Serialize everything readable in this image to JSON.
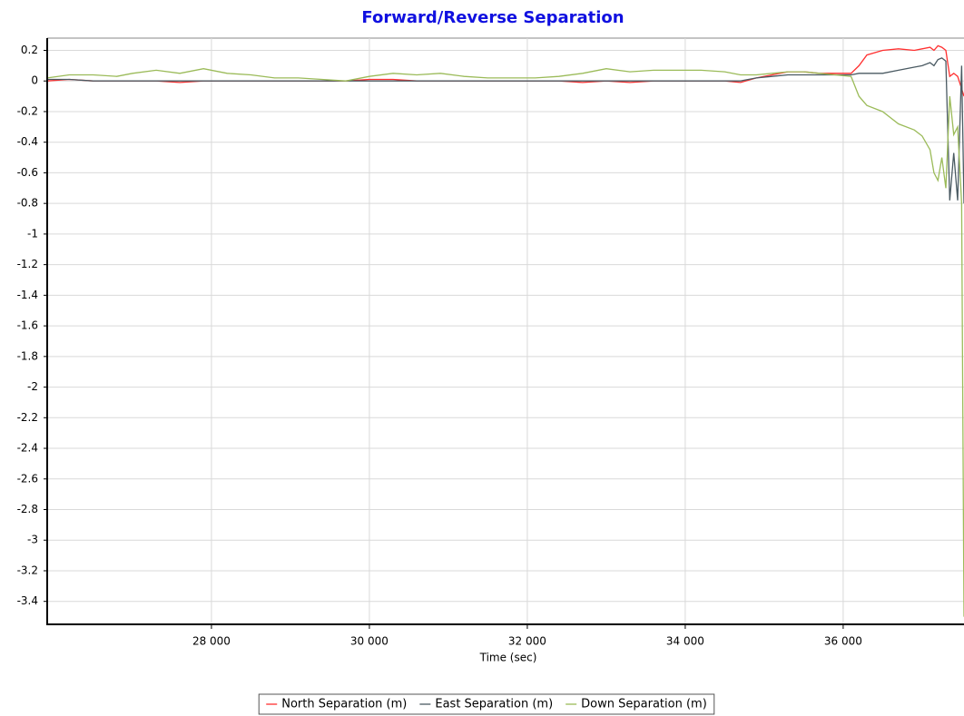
{
  "chart_data": {
    "type": "line",
    "title": "Forward/Reverse Separation",
    "x_label": "Time (sec)",
    "x": [
      25920,
      26200,
      26500,
      26800,
      27000,
      27300,
      27600,
      27900,
      28200,
      28500,
      28800,
      29100,
      29400,
      29700,
      30000,
      30300,
      30600,
      30900,
      31200,
      31500,
      31800,
      32100,
      32400,
      32700,
      33000,
      33300,
      33600,
      33900,
      34200,
      34500,
      34700,
      34900,
      35100,
      35300,
      35500,
      35700,
      35900,
      36100,
      36200,
      36300,
      36500,
      36700,
      36900,
      37000,
      37100,
      37150,
      37200,
      37250,
      37300,
      37350,
      37400,
      37450,
      37500,
      37530
    ],
    "series": [
      {
        "name": "North Separation (m)",
        "color": "#ff3030",
        "values": [
          0,
          0.01,
          0,
          0,
          0,
          0,
          -0.01,
          0,
          0,
          0,
          0,
          0,
          0,
          0,
          0.01,
          0.01,
          0,
          0,
          0,
          0,
          0,
          0,
          0,
          -0.01,
          0,
          -0.01,
          0,
          0,
          0,
          0,
          -0.01,
          0.02,
          0.04,
          0.06,
          0.06,
          0.05,
          0.05,
          0.05,
          0.1,
          0.17,
          0.2,
          0.21,
          0.2,
          0.21,
          0.22,
          0.2,
          0.23,
          0.22,
          0.2,
          0.03,
          0.05,
          0.03,
          -0.05,
          -0.1
        ]
      },
      {
        "name": "East Separation (m)",
        "color": "#4a5a62",
        "values": [
          0.01,
          0.01,
          0,
          0,
          0,
          0,
          0,
          0,
          0,
          0,
          0,
          0,
          0,
          0,
          0,
          0,
          0,
          0,
          0,
          0,
          0,
          0,
          0,
          0,
          0,
          0,
          0,
          0,
          0,
          0,
          0,
          0.02,
          0.03,
          0.04,
          0.04,
          0.04,
          0.04,
          0.04,
          0.05,
          0.05,
          0.05,
          0.07,
          0.09,
          0.1,
          0.12,
          0.1,
          0.14,
          0.15,
          0.13,
          -0.78,
          -0.47,
          -0.78,
          0.1,
          -0.8
        ]
      },
      {
        "name": "Down Separation (m)",
        "color": "#9bbb59",
        "values": [
          0.02,
          0.04,
          0.04,
          0.03,
          0.05,
          0.07,
          0.05,
          0.08,
          0.05,
          0.04,
          0.02,
          0.02,
          0.01,
          0,
          0.03,
          0.05,
          0.04,
          0.05,
          0.03,
          0.02,
          0.02,
          0.02,
          0.03,
          0.05,
          0.08,
          0.06,
          0.07,
          0.07,
          0.07,
          0.06,
          0.04,
          0.04,
          0.05,
          0.06,
          0.06,
          0.05,
          0.04,
          0.03,
          -0.1,
          -0.16,
          -0.2,
          -0.28,
          -0.32,
          -0.36,
          -0.45,
          -0.6,
          -0.65,
          -0.5,
          -0.7,
          -0.1,
          -0.35,
          -0.3,
          -0.8,
          -3.5
        ]
      }
    ],
    "xlim": [
      25920,
      37530
    ],
    "xticks": [
      {
        "value": 28000,
        "label": "28 000"
      },
      {
        "value": 30000,
        "label": "30 000"
      },
      {
        "value": 32000,
        "label": "32 000"
      },
      {
        "value": 34000,
        "label": "34 000"
      },
      {
        "value": 36000,
        "label": "36 000"
      }
    ],
    "ylim": [
      -3.55,
      0.28
    ],
    "yticks": [
      0.2,
      0,
      -0.2,
      -0.4,
      -0.6,
      -0.8,
      -1,
      -1.2,
      -1.4,
      -1.6,
      -1.8,
      -2,
      -2.2,
      -2.4,
      -2.6,
      -2.8,
      -3,
      -3.2,
      -3.4
    ],
    "grid": true,
    "legend": "bottom"
  }
}
